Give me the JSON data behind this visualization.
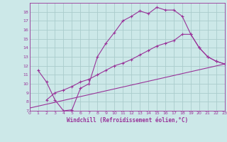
{
  "bg_color": "#cce8e8",
  "grid_color": "#aacccc",
  "line_color": "#993399",
  "marker": "+",
  "xlabel": "Windchill (Refroidissement éolien,°C)",
  "xlim": [
    0,
    23
  ],
  "ylim": [
    7,
    19
  ],
  "xticks": [
    0,
    1,
    2,
    3,
    4,
    5,
    6,
    7,
    8,
    9,
    10,
    11,
    12,
    13,
    14,
    15,
    16,
    17,
    18,
    19,
    20,
    21,
    22,
    23
  ],
  "yticks": [
    7,
    8,
    9,
    10,
    11,
    12,
    13,
    14,
    15,
    16,
    17,
    18
  ],
  "line1_x": [
    1,
    2,
    3,
    4,
    5,
    6,
    7,
    8,
    9,
    10,
    11,
    12,
    13,
    14,
    15,
    16,
    17,
    18,
    19,
    20,
    21,
    22,
    23
  ],
  "line1_y": [
    11.5,
    10.2,
    8.2,
    7.0,
    7.1,
    9.5,
    10.0,
    13.0,
    14.5,
    15.7,
    17.0,
    17.5,
    18.1,
    17.8,
    18.5,
    18.2,
    18.2,
    17.5,
    15.5,
    14.0,
    13.0,
    12.5,
    12.2
  ],
  "line2_x": [
    2,
    3,
    4,
    5,
    6,
    7,
    8,
    9,
    10,
    11,
    12,
    13,
    14,
    15,
    16,
    17,
    18,
    19,
    20,
    21,
    22,
    23
  ],
  "line2_y": [
    8.2,
    9.0,
    9.3,
    9.7,
    10.2,
    10.5,
    11.0,
    11.5,
    12.0,
    12.3,
    12.7,
    13.2,
    13.7,
    14.2,
    14.5,
    14.8,
    15.5,
    15.5,
    14.0,
    13.0,
    12.5,
    12.2
  ],
  "line3_x": [
    0,
    23
  ],
  "line3_y": [
    7.3,
    12.2
  ]
}
